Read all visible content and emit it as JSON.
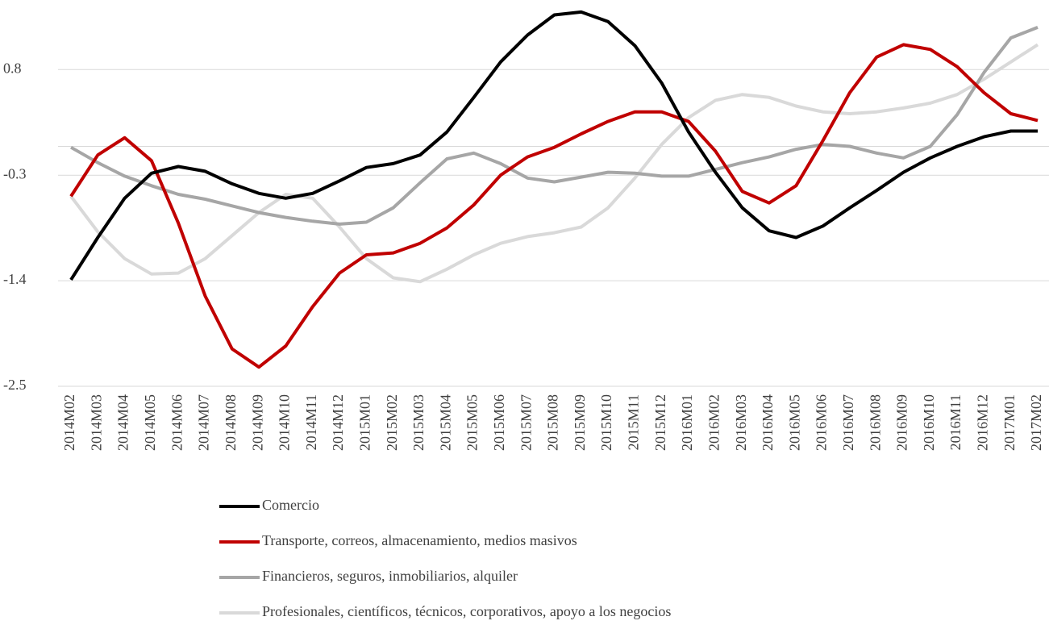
{
  "chart_data": {
    "type": "line",
    "categories": [
      "2014M02",
      "2014M03",
      "2014M04",
      "2014M05",
      "2014M06",
      "2014M07",
      "2014M08",
      "2014M09",
      "2014M10",
      "2014M11",
      "2014M12",
      "2015M01",
      "2015M02",
      "2015M03",
      "2015M04",
      "2015M05",
      "2015M06",
      "2015M07",
      "2015M08",
      "2015M09",
      "2015M10",
      "2015M11",
      "2015M12",
      "2016M01",
      "2016M02",
      "2016M03",
      "2016M04",
      "2016M05",
      "2016M06",
      "2016M07",
      "2016M08",
      "2016M09",
      "2016M10",
      "2016M11",
      "2016M12",
      "2017M01",
      "2017M02"
    ],
    "series": [
      {
        "name": "Comercio",
        "color": "#000000",
        "values": [
          -1.39,
          -0.95,
          -0.54,
          -0.28,
          -0.21,
          -0.26,
          -0.39,
          -0.49,
          -0.54,
          -0.49,
          -0.36,
          -0.22,
          -0.18,
          -0.09,
          0.15,
          0.51,
          0.88,
          1.16,
          1.37,
          1.4,
          1.3,
          1.05,
          0.66,
          0.15,
          -0.27,
          -0.64,
          -0.88,
          -0.95,
          -0.83,
          -0.64,
          -0.46,
          -0.27,
          -0.12,
          0.0,
          0.1,
          0.16,
          0.16
        ]
      },
      {
        "name": "Transporte, correos, almacenamiento, medios masivos",
        "color": "#c00000",
        "values": [
          -0.52,
          -0.09,
          0.09,
          -0.15,
          -0.8,
          -1.56,
          -2.11,
          -2.3,
          -2.08,
          -1.67,
          -1.32,
          -1.13,
          -1.11,
          -1.01,
          -0.85,
          -0.61,
          -0.3,
          -0.11,
          -0.01,
          0.13,
          0.26,
          0.36,
          0.36,
          0.26,
          -0.05,
          -0.47,
          -0.59,
          -0.41,
          0.06,
          0.56,
          0.93,
          1.06,
          1.01,
          0.83,
          0.56,
          0.34,
          0.27
        ]
      },
      {
        "name": "Financieros, seguros, inmobiliarios, alquiler",
        "color": "#a6a6a6",
        "values": [
          -0.01,
          -0.17,
          -0.31,
          -0.41,
          -0.5,
          -0.55,
          -0.62,
          -0.69,
          -0.74,
          -0.78,
          -0.81,
          -0.79,
          -0.64,
          -0.38,
          -0.13,
          -0.07,
          -0.18,
          -0.33,
          -0.37,
          -0.32,
          -0.27,
          -0.28,
          -0.31,
          -0.31,
          -0.24,
          -0.17,
          -0.11,
          -0.03,
          0.02,
          0.0,
          -0.07,
          -0.12,
          0.0,
          0.33,
          0.77,
          1.13,
          1.24
        ]
      },
      {
        "name": "Profesionales, científicos, técnicos, corporativos, apoyo a los negocios",
        "color": "#d9d9d9",
        "values": [
          -0.52,
          -0.89,
          -1.17,
          -1.33,
          -1.32,
          -1.17,
          -0.93,
          -0.69,
          -0.5,
          -0.54,
          -0.84,
          -1.17,
          -1.37,
          -1.41,
          -1.28,
          -1.13,
          -1.01,
          -0.94,
          -0.9,
          -0.84,
          -0.64,
          -0.33,
          0.02,
          0.3,
          0.48,
          0.54,
          0.51,
          0.42,
          0.36,
          0.34,
          0.36,
          0.4,
          0.45,
          0.54,
          0.7,
          0.88,
          1.06
        ]
      }
    ],
    "ylim": [
      -2.5,
      1.5
    ],
    "yticks": [
      -2.5,
      -1.4,
      -0.3,
      0.8
    ],
    "grid": true
  }
}
